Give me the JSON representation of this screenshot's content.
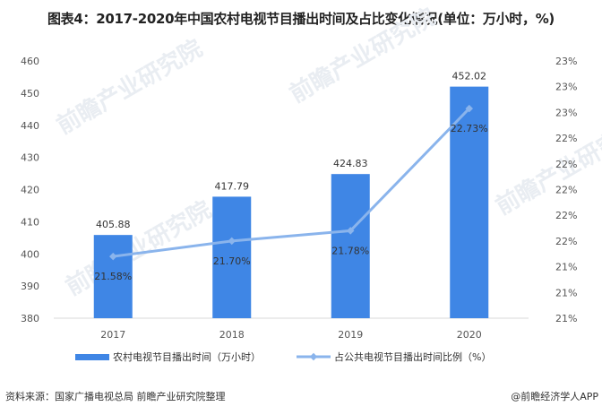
{
  "title": "图表4：2017-2020年中国农村电视节目播出时间及占比变化情况(单位：万小时，%)",
  "source": "资料来源：国家广播电视总局 前瞻产业研究院整理",
  "brand": "@前瞻经济学人APP",
  "watermark": "前瞻产业研究院",
  "colors": {
    "bar": "#3f86e5",
    "line": "#8ab4ec",
    "axis": "#d9d9d9"
  },
  "legend": {
    "bar_label": "农村电视节目播出时间（万小时）",
    "line_label": "占公共电视节目播出时间比例（%）"
  },
  "chart_data": {
    "type": "bar+line",
    "title": "图表4：2017-2020年中国农村电视节目播出时间及占比变化情况(单位：万小时，%)",
    "categories": [
      "2017",
      "2018",
      "2019",
      "2020"
    ],
    "series": [
      {
        "name": "农村电视节目播出时间（万小时）",
        "type": "bar",
        "axis": "left",
        "values": [
          405.88,
          417.79,
          424.83,
          452.02
        ],
        "labels": [
          "405.88",
          "417.79",
          "424.83",
          "452.02"
        ]
      },
      {
        "name": "占公共电视节目播出时间比例（%）",
        "type": "line",
        "axis": "right",
        "values": [
          21.58,
          21.7,
          21.78,
          22.73
        ],
        "labels": [
          "21.58%",
          "21.70%",
          "21.78%",
          "22.73%"
        ]
      }
    ],
    "left_axis": {
      "ylim": [
        380,
        460
      ],
      "ticks": [
        "460",
        "450",
        "440",
        "430",
        "420",
        "410",
        "400",
        "390",
        "380"
      ]
    },
    "right_axis": {
      "ylim": [
        21.1,
        23.1
      ],
      "ticks": [
        "23%",
        "23%",
        "23%",
        "22%",
        "22%",
        "22%",
        "22%",
        "22%",
        "21%",
        "21%",
        "21%"
      ]
    },
    "xlabel": "",
    "ylabel": "",
    "grid": false,
    "legend_position": "bottom"
  }
}
